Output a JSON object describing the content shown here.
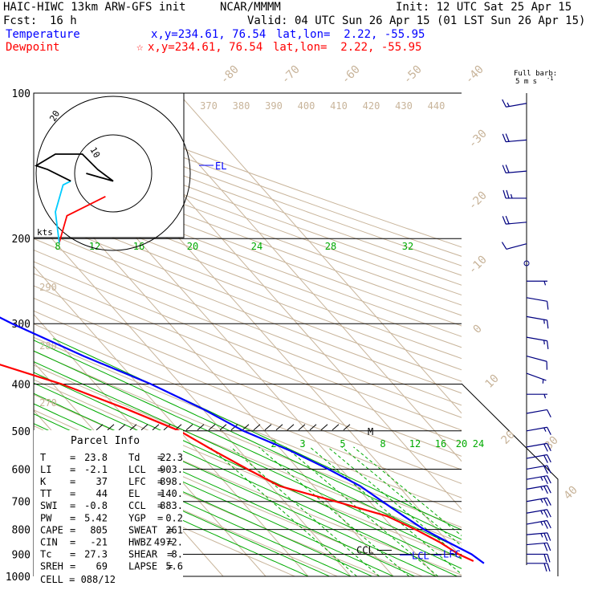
{
  "header": {
    "model": "HAIC-HIWC 13km ARW-GFS init",
    "org": "NCAR/MMMM",
    "init": "Init: 12 UTC Sat 25 Apr 15",
    "fcst_label": "Fcst:",
    "fcst_value": "16 h",
    "valid": "Valid: 04 UTC Sun 26 Apr 15 (01 LST Sun 26 Apr 15)"
  },
  "legend": {
    "temperature": {
      "label": "Temperature",
      "xy": "x,y=234.61, 76.54",
      "latlon": "lat,lon=  2.22, -55.95",
      "color": "#0000ff"
    },
    "dewpoint": {
      "label": "Dewpoint",
      "marker": "☆",
      "xy": "x,y=234.61, 76.54",
      "latlon": "lat,lon=  2.22, -55.95",
      "color": "#ff0000"
    }
  },
  "barb_key": {
    "line1": "Full barb:",
    "line2": "5 m s",
    "sup": "-1"
  },
  "chart_data": {
    "type": "skew-t",
    "pressure_levels": [
      100,
      200,
      300,
      400,
      500,
      600,
      700,
      800,
      900,
      1000
    ],
    "pressure_labels": [
      "100",
      "200",
      "300",
      "400",
      "500",
      "600",
      "700",
      "800",
      "900",
      "1000"
    ],
    "isotherm_labels": [
      "-80",
      "-70",
      "-60",
      "-50",
      "-40",
      "-30",
      "-20",
      "-10",
      "0",
      "10",
      "20",
      "30",
      "40"
    ],
    "theta_labels_top": [
      "370",
      "380",
      "390",
      "400",
      "410",
      "420",
      "430",
      "440"
    ],
    "theta_labels_left": [
      "290",
      "280",
      "270"
    ],
    "mixing_ratio_top": [
      "8",
      "12",
      "16",
      "20",
      "24",
      "28",
      "32"
    ],
    "mixing_ratio_bottom": [
      "2",
      "3",
      "5",
      "8",
      "12",
      "16",
      "20",
      "24"
    ],
    "series": [
      {
        "name": "Temperature",
        "color": "#0000ff",
        "points": [
          [
            100,
            -86
          ],
          [
            115,
            -85
          ],
          [
            130,
            -78
          ],
          [
            150,
            -72
          ],
          [
            175,
            -65
          ],
          [
            200,
            -58
          ],
          [
            250,
            -47
          ],
          [
            300,
            -37
          ],
          [
            350,
            -27
          ],
          [
            400,
            -17
          ],
          [
            450,
            -10
          ],
          [
            500,
            -5
          ],
          [
            550,
            2
          ],
          [
            600,
            7
          ],
          [
            650,
            11
          ],
          [
            700,
            13
          ],
          [
            750,
            15
          ],
          [
            800,
            17
          ],
          [
            850,
            20
          ],
          [
            900,
            23
          ],
          [
            940,
            24
          ]
        ]
      },
      {
        "name": "Dewpoint",
        "color": "#ff0000",
        "points": [
          [
            100,
            -62
          ],
          [
            125,
            -78
          ],
          [
            150,
            -78
          ],
          [
            175,
            -76
          ],
          [
            200,
            -72
          ],
          [
            250,
            -70
          ],
          [
            300,
            -66
          ],
          [
            350,
            -53
          ],
          [
            400,
            -38
          ],
          [
            450,
            -28
          ],
          [
            500,
            -20
          ],
          [
            550,
            -16
          ],
          [
            600,
            -12
          ],
          [
            650,
            -8
          ],
          [
            700,
            2
          ],
          [
            750,
            11
          ],
          [
            800,
            15
          ],
          [
            850,
            18
          ],
          [
            900,
            20
          ],
          [
            930,
            22
          ]
        ]
      }
    ],
    "markers": {
      "el": {
        "label": "EL",
        "pressure": 140
      },
      "m": {
        "label": "M",
        "pressure": 500
      },
      "ccl": {
        "label": "CCL",
        "pressure": 883
      },
      "lcl": {
        "label": "LCL",
        "pressure": 903
      },
      "lfc": {
        "label": "LFC",
        "pressure": 898
      }
    },
    "hodograph": {
      "ring_labels": [
        "10",
        "20"
      ],
      "units": "kts",
      "segments": [
        {
          "color": "#ff0000",
          "points": [
            [
              -14,
              -18
            ],
            [
              -12,
              -11
            ],
            [
              -2,
              -6
            ]
          ]
        },
        {
          "color": "#00ccff",
          "points": [
            [
              -14,
              -18
            ],
            [
              -15,
              -10
            ],
            [
              -13,
              -3
            ],
            [
              -11,
              -2
            ]
          ]
        },
        {
          "color": "#000000",
          "points": [
            [
              -11,
              -2
            ],
            [
              -17,
              1
            ],
            [
              -20,
              2
            ],
            [
              -15,
              5
            ],
            [
              -8,
              5
            ],
            [
              -4,
              1
            ],
            [
              0,
              -2
            ],
            [
              -7,
              0
            ]
          ]
        }
      ]
    },
    "winds": [
      {
        "p": 105,
        "dir": 260,
        "speed": 15
      },
      {
        "p": 125,
        "dir": 265,
        "speed": 20
      },
      {
        "p": 145,
        "dir": 265,
        "speed": 20
      },
      {
        "p": 165,
        "dir": 270,
        "speed": 25
      },
      {
        "p": 185,
        "dir": 265,
        "speed": 20
      },
      {
        "p": 205,
        "dir": 255,
        "speed": 10
      },
      {
        "p": 225,
        "dir": 0,
        "speed": 0
      },
      {
        "p": 245,
        "dir": 90,
        "speed": 5
      },
      {
        "p": 265,
        "dir": 100,
        "speed": 10
      },
      {
        "p": 290,
        "dir": 100,
        "speed": 15
      },
      {
        "p": 320,
        "dir": 100,
        "speed": 15
      },
      {
        "p": 350,
        "dir": 105,
        "speed": 10
      },
      {
        "p": 380,
        "dir": 110,
        "speed": 5
      },
      {
        "p": 420,
        "dir": 90,
        "speed": 5
      },
      {
        "p": 460,
        "dir": 80,
        "speed": 10
      },
      {
        "p": 500,
        "dir": 80,
        "speed": 15
      },
      {
        "p": 540,
        "dir": 80,
        "speed": 20
      },
      {
        "p": 570,
        "dir": 80,
        "speed": 20
      },
      {
        "p": 600,
        "dir": 80,
        "speed": 20
      },
      {
        "p": 630,
        "dir": 80,
        "speed": 25
      },
      {
        "p": 660,
        "dir": 80,
        "speed": 25
      },
      {
        "p": 700,
        "dir": 80,
        "speed": 25
      },
      {
        "p": 740,
        "dir": 80,
        "speed": 25
      },
      {
        "p": 780,
        "dir": 80,
        "speed": 25
      },
      {
        "p": 820,
        "dir": 85,
        "speed": 25
      },
      {
        "p": 860,
        "dir": 85,
        "speed": 20
      },
      {
        "p": 900,
        "dir": 90,
        "speed": 20
      },
      {
        "p": 940,
        "dir": 90,
        "speed": 20
      }
    ]
  },
  "parcel_info": {
    "title": "Parcel Info",
    "rows": [
      [
        "T",
        "=",
        "23.8",
        "Td",
        "=",
        "22.3"
      ],
      [
        "LI",
        "=",
        "-2.1",
        "LCL",
        "=",
        "903."
      ],
      [
        "K",
        "=",
        "37",
        "LFC",
        "=",
        "898."
      ],
      [
        "TT",
        "=",
        "44",
        "EL",
        "=",
        "140."
      ],
      [
        "SWI",
        "=",
        "-0.8",
        "CCL",
        "=",
        "883."
      ],
      [
        "PW",
        "=",
        "5.42",
        "YGP",
        "=",
        "0.2"
      ],
      [
        "CAPE",
        "=",
        "805",
        "SWEAT",
        "=",
        "261"
      ],
      [
        "CIN",
        "=",
        "-21",
        "HWBZ",
        "=",
        "4972."
      ],
      [
        "Tc",
        "=",
        "27.3",
        "SHEAR",
        "=",
        "8."
      ],
      [
        "SREH",
        "=",
        "69",
        "LAPSE",
        "=",
        "5.6"
      ]
    ],
    "cell": "CELL = 088/12"
  }
}
